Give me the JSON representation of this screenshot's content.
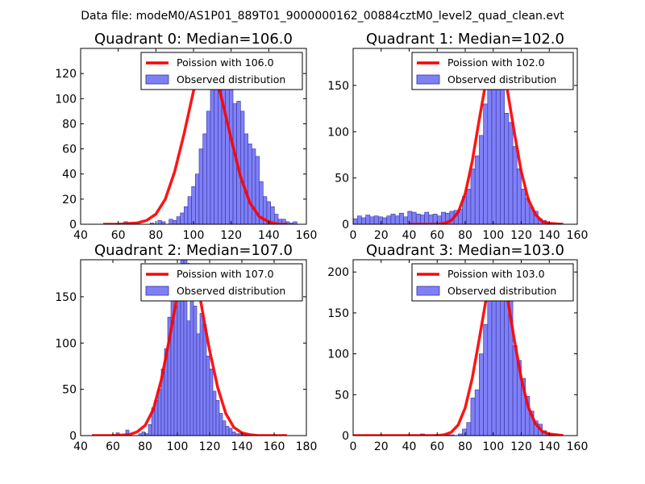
{
  "suptitle": "Data file: modeM0/AS1P01_889T01_9000000162_00884cztM0_level2_quad_clean.evt",
  "colors": {
    "bar_fill": "#7f7ff7",
    "bar_edge": "#333399",
    "fit_line": "#ff0000",
    "background": "#ffffff"
  },
  "chart_data": [
    {
      "type": "bar",
      "title": "Quadrant 0: Median=106.0",
      "xlabel": "",
      "ylabel": "",
      "xlim": [
        40,
        160
      ],
      "ylim": [
        0,
        140
      ],
      "xticks": [
        "40",
        "60",
        "80",
        "100",
        "120",
        "140",
        "160"
      ],
      "yticks": [
        "0",
        "20",
        "40",
        "60",
        "80",
        "100",
        "120"
      ],
      "legend": {
        "position": "top-right",
        "entries": [
          "Poission with 106.0",
          "Observed distribution"
        ]
      },
      "hist": {
        "start": 51,
        "bin_width": 2,
        "values": [
          0,
          0,
          0,
          0,
          0,
          0,
          2,
          1,
          0,
          0,
          0,
          0,
          0,
          1,
          0,
          3,
          2,
          0,
          4,
          3,
          6,
          9,
          14,
          22,
          30,
          40,
          60,
          72,
          90,
          108,
          120,
          114,
          132,
          128,
          112,
          96,
          98,
          90,
          72,
          64,
          60,
          54,
          34,
          22,
          18,
          14,
          8,
          4,
          4,
          2,
          1,
          2,
          0,
          0,
          0,
          0
        ]
      },
      "poisson": {
        "x": [
          52,
          60,
          70,
          75,
          80,
          85,
          90,
          95,
          100,
          103,
          106,
          109,
          112,
          115,
          120,
          125,
          130,
          135,
          140,
          145,
          150
        ],
        "y": [
          0,
          0,
          1,
          3,
          8,
          20,
          42,
          72,
          106,
          123,
          131,
          128,
          117,
          100,
          68,
          38,
          17,
          6,
          2,
          0,
          0
        ]
      }
    },
    {
      "type": "bar",
      "title": "Quadrant 1: Median=102.0",
      "xlabel": "",
      "ylabel": "",
      "xlim": [
        0,
        160
      ],
      "ylim": [
        0,
        190
      ],
      "xticks": [
        "0",
        "20",
        "40",
        "60",
        "80",
        "100",
        "120",
        "140",
        "160"
      ],
      "yticks": [
        "0",
        "50",
        "100",
        "150"
      ],
      "legend": {
        "position": "top-right",
        "entries": [
          "Poission with 102.0",
          "Observed distribution"
        ]
      },
      "hist": {
        "start": 0,
        "bin_width": 3,
        "values": [
          6,
          9,
          7,
          10,
          8,
          9,
          8,
          7,
          9,
          11,
          9,
          12,
          8,
          14,
          13,
          11,
          10,
          13,
          10,
          11,
          9,
          13,
          12,
          14,
          15,
          16,
          30,
          38,
          60,
          74,
          96,
          130,
          155,
          172,
          180,
          150,
          120,
          110,
          84,
          60,
          38,
          28,
          18,
          14,
          6,
          4,
          2,
          1,
          0,
          0,
          0,
          0,
          0
        ]
      },
      "poisson": {
        "x": [
          40,
          50,
          60,
          65,
          70,
          75,
          80,
          85,
          90,
          95,
          100,
          102,
          105,
          110,
          115,
          120,
          125,
          130,
          135,
          140,
          150
        ],
        "y": [
          0,
          0,
          0,
          1,
          4,
          13,
          33,
          68,
          113,
          156,
          177,
          180,
          175,
          146,
          100,
          57,
          27,
          11,
          3,
          1,
          0
        ]
      }
    },
    {
      "type": "bar",
      "title": "Quadrant 2: Median=107.0",
      "xlabel": "",
      "ylabel": "",
      "xlim": [
        40,
        180
      ],
      "ylim": [
        0,
        190
      ],
      "xticks": [
        "40",
        "60",
        "80",
        "100",
        "120",
        "140",
        "160",
        "180"
      ],
      "yticks": [
        "0",
        "50",
        "100",
        "150"
      ],
      "legend": {
        "position": "top-right",
        "entries": [
          "Poission with 107.0",
          "Observed distribution"
        ]
      },
      "hist": {
        "start": 46,
        "bin_width": 2,
        "values": [
          0,
          0,
          0,
          0,
          0,
          0,
          0,
          0,
          3,
          0,
          0,
          6,
          0,
          0,
          0,
          2,
          4,
          2,
          12,
          30,
          38,
          50,
          72,
          94,
          128,
          160,
          140,
          150,
          200,
          190,
          124,
          160,
          140,
          110,
          132,
          120,
          86,
          72,
          48,
          38,
          24,
          16,
          10,
          8,
          4,
          2,
          2,
          1,
          1,
          0,
          0,
          0,
          0,
          0,
          0,
          0,
          0,
          0,
          0,
          0,
          0
        ]
      },
      "poisson": {
        "x": [
          47,
          60,
          70,
          75,
          80,
          85,
          90,
          95,
          100,
          103,
          107,
          110,
          113,
          117,
          120,
          125,
          130,
          135,
          140,
          145,
          150,
          160,
          168
        ],
        "y": [
          0,
          0,
          1,
          4,
          11,
          28,
          60,
          104,
          152,
          174,
          185,
          178,
          160,
          120,
          92,
          52,
          24,
          9,
          3,
          1,
          0,
          0,
          0
        ]
      }
    },
    {
      "type": "bar",
      "title": "Quadrant 3: Median=103.0",
      "xlabel": "",
      "ylabel": "",
      "xlim": [
        0,
        160
      ],
      "ylim": [
        0,
        215
      ],
      "xticks": [
        "0",
        "20",
        "40",
        "60",
        "80",
        "100",
        "120",
        "140",
        "160"
      ],
      "yticks": [
        "0",
        "50",
        "100",
        "150",
        "200"
      ],
      "legend": {
        "position": "top-right",
        "entries": [
          "Poission with 103.0",
          "Observed distribution"
        ]
      },
      "hist": {
        "start": 48,
        "bin_width": 3,
        "values": [
          2,
          0,
          0,
          1,
          0,
          0,
          1,
          1,
          0,
          2,
          8,
          16,
          46,
          56,
          100,
          136,
          170,
          200,
          210,
          190,
          170,
          170,
          110,
          92,
          70,
          48,
          30,
          18,
          14,
          6,
          2,
          1,
          0,
          0
        ]
      },
      "poisson": {
        "x": [
          0,
          40,
          60,
          65,
          70,
          75,
          80,
          85,
          90,
          95,
          100,
          103,
          106,
          110,
          115,
          120,
          125,
          130,
          135,
          140,
          150
        ],
        "y": [
          0,
          0,
          0,
          1,
          4,
          13,
          34,
          70,
          118,
          168,
          201,
          206,
          200,
          170,
          118,
          70,
          35,
          15,
          5,
          2,
          0
        ]
      }
    }
  ]
}
